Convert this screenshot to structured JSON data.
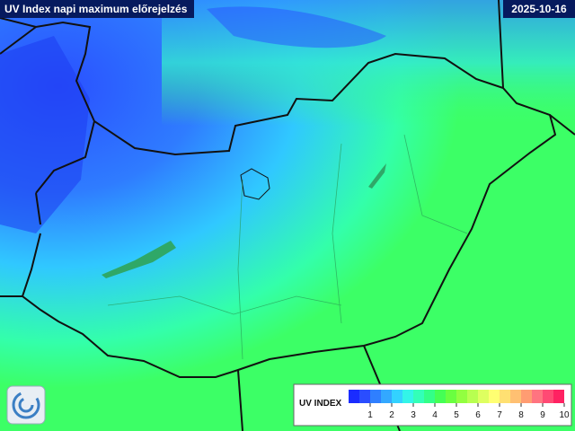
{
  "header": {
    "title": "UV Index napi maximum előrejelzés",
    "date": "2025-10-16"
  },
  "legend": {
    "title": "UV INDEX",
    "ticks": [
      1,
      2,
      3,
      4,
      5,
      6,
      7,
      8,
      9,
      10
    ],
    "colors": [
      "#1a2cff",
      "#2a4dff",
      "#2f7fff",
      "#33a8ff",
      "#33d2ff",
      "#33f5e8",
      "#33ffb8",
      "#33ff88",
      "#45ff55",
      "#6aff40",
      "#92ff40",
      "#b8ff50",
      "#deff60",
      "#ffff72",
      "#ffe072",
      "#ffc072",
      "#ff9c72",
      "#ff7480",
      "#ff4a74",
      "#ff2262"
    ]
  }
}
